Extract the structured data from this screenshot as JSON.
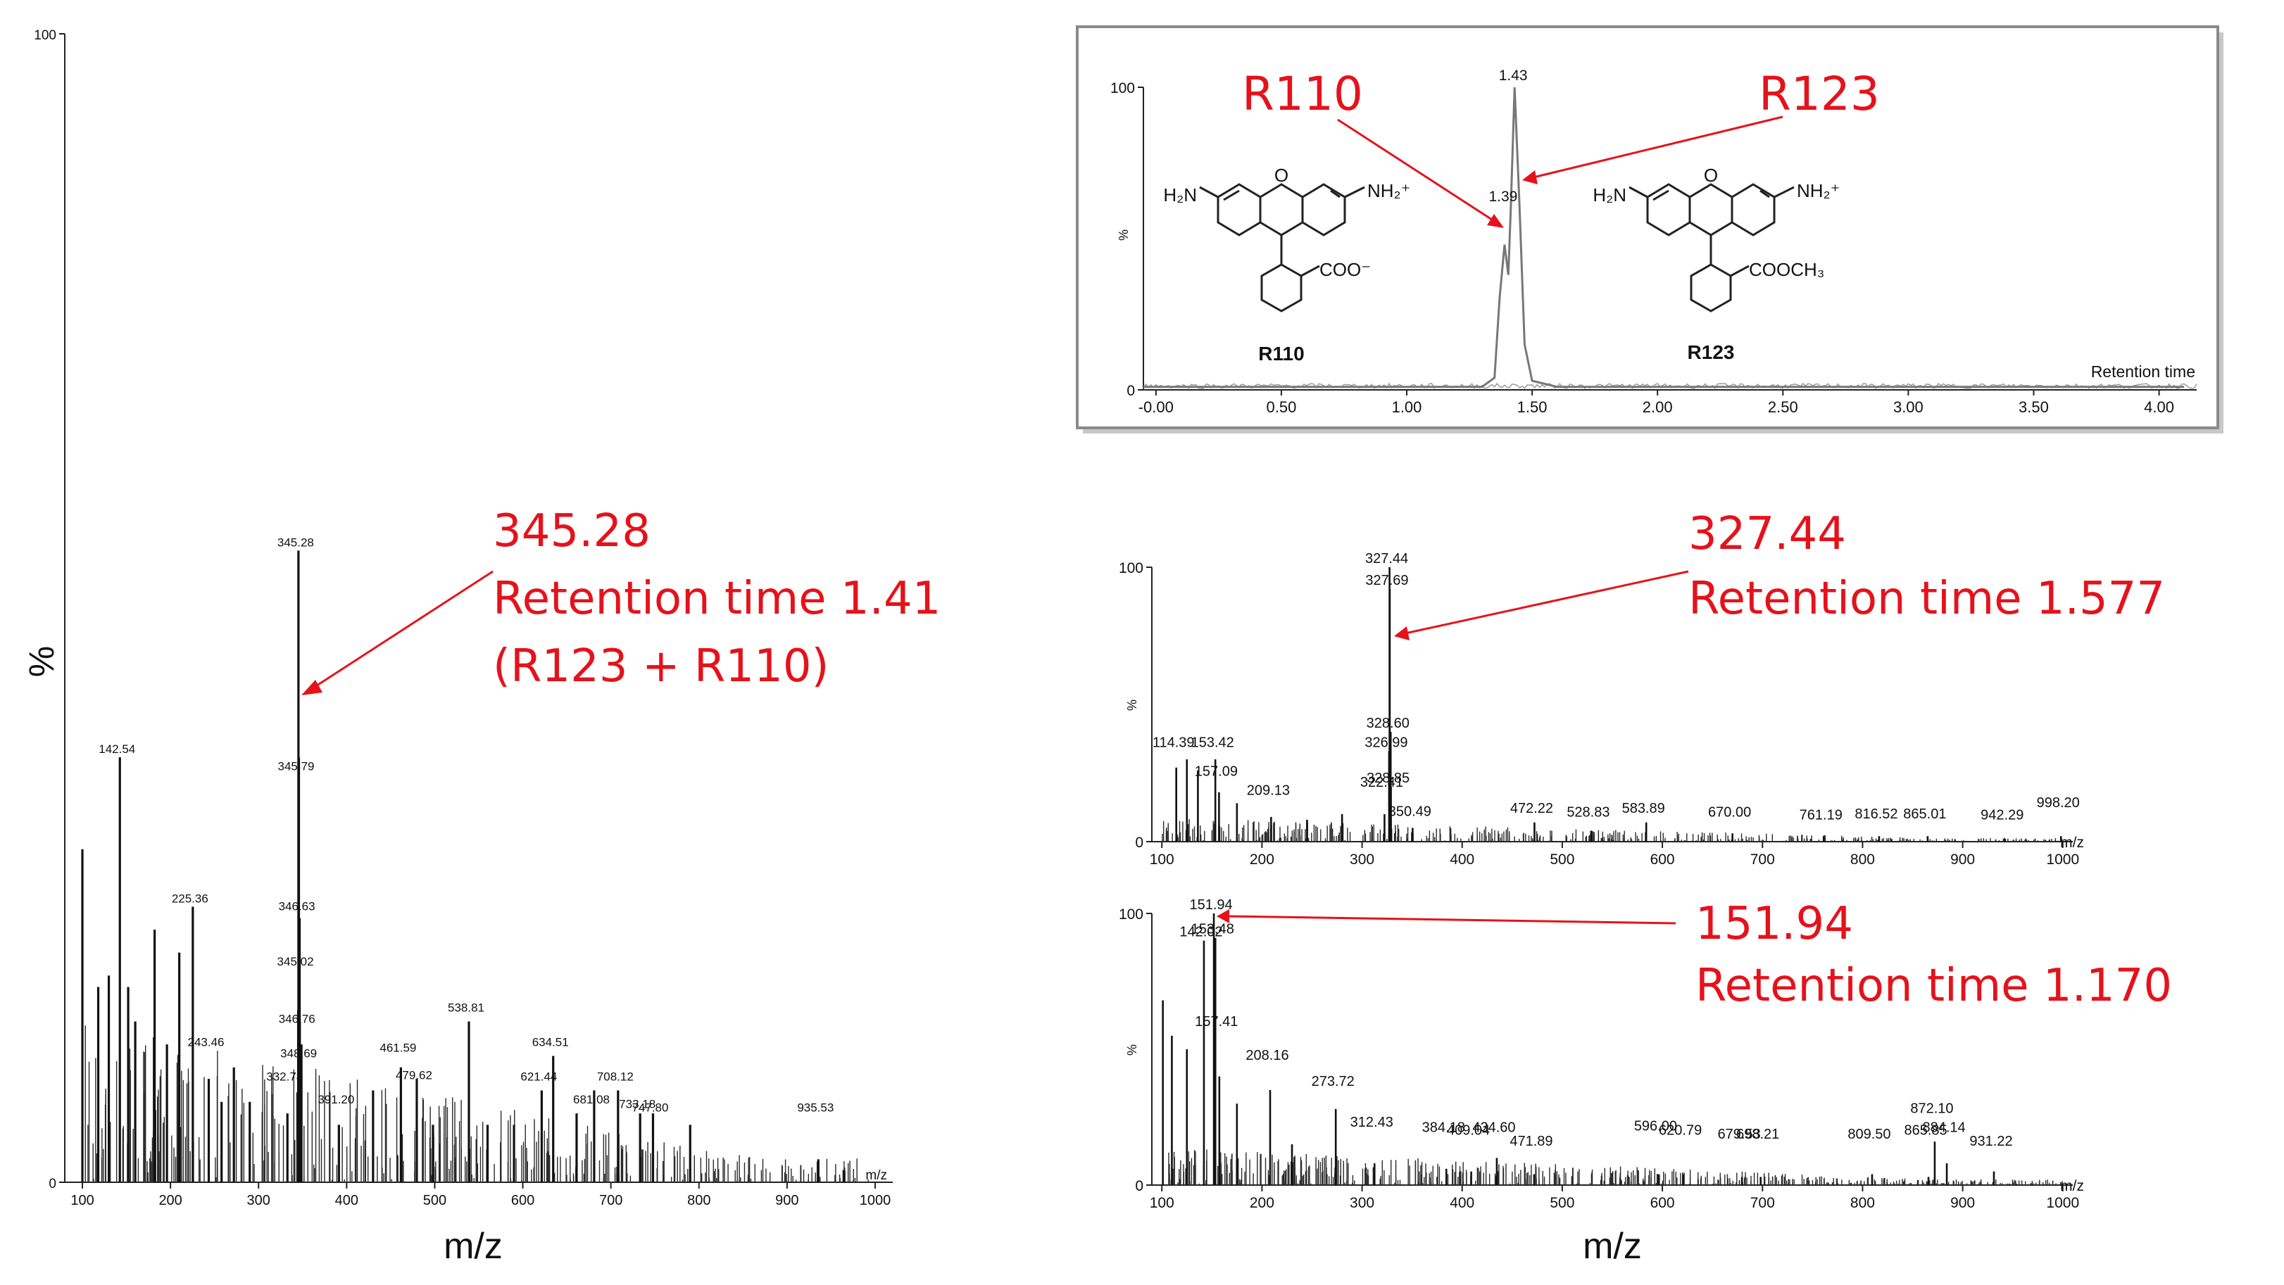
{
  "labels": {
    "percent_big": "%",
    "percent_small": "%",
    "mz_axis_tag": "m/z",
    "mz_xlabel_left": "m/z",
    "mz_xlabel_right": "m/z",
    "retention_axis_tag": "Retention time"
  },
  "annotations": {
    "left": [
      "345.28",
      "Retention time 1.41",
      "(R123 + R110)"
    ],
    "right_top": [
      "327.44",
      "Retention time 1.577"
    ],
    "right_bottom": [
      "151.94",
      "Retention time 1.170"
    ],
    "inset_r110": "R110",
    "inset_r123": "R123"
  },
  "chem": {
    "r110": {
      "amine_left": "H₂N",
      "amine_right": "NH₂⁺",
      "oxygen": "O",
      "substituent": "COO⁻",
      "name": "R110"
    },
    "r123": {
      "amine_left": "H₂N",
      "amine_right": "NH₂⁺",
      "oxygen": "O",
      "substituent": "COOCH₃",
      "name": "R123"
    }
  },
  "colors": {
    "annotation": "#e5121b",
    "trace": "#111111",
    "inset_trace": "#777777",
    "inset_border": "#888888"
  },
  "chart_data": [
    {
      "id": "main_spectrum",
      "type": "bar",
      "x": [
        100,
        118,
        130,
        142.54,
        152,
        160,
        182,
        196,
        210,
        225.36,
        243.46,
        258,
        272,
        290,
        332.78,
        345.02,
        345.28,
        345.79,
        346.63,
        346.76,
        348.69,
        391.2,
        430,
        461.59,
        479.62,
        498,
        538.81,
        560,
        590,
        621.44,
        634.51,
        661.08,
        681,
        708.12,
        733.18,
        747.8,
        790,
        935.53,
        965
      ],
      "values": [
        29,
        17,
        18,
        37,
        17,
        14,
        22,
        12,
        20,
        24,
        9,
        7,
        10,
        7,
        6,
        15,
        55,
        37,
        23,
        14,
        12,
        5,
        8,
        10,
        9,
        5,
        14,
        5,
        5,
        8,
        11,
        6,
        8,
        8,
        6,
        6,
        5,
        2,
        1
      ],
      "peak_labels": [
        {
          "x": 142.54,
          "y": 37,
          "label": "142.54"
        },
        {
          "x": 225.36,
          "y": 24,
          "label": "225.36"
        },
        {
          "x": 243.46,
          "y": 11.5,
          "label": "243.46"
        },
        {
          "x": 332.78,
          "y": 8.5,
          "label": "332.78"
        },
        {
          "x": 345.28,
          "y": 55,
          "label": "345.28"
        },
        {
          "x": 345.79,
          "y": 35.5,
          "label": "345.79"
        },
        {
          "x": 346.63,
          "y": 23.3,
          "label": "346.63"
        },
        {
          "x": 345.02,
          "y": 18.5,
          "label": "345.02"
        },
        {
          "x": 346.76,
          "y": 13.5,
          "label": "346.76"
        },
        {
          "x": 348.69,
          "y": 10.5,
          "label": "348.69"
        },
        {
          "x": 391.2,
          "y": 6.5,
          "label": "391.20"
        },
        {
          "x": 461.59,
          "y": 11,
          "label": "461.59"
        },
        {
          "x": 479.62,
          "y": 8.6,
          "label": "479.62"
        },
        {
          "x": 538.81,
          "y": 14.5,
          "label": "538.81"
        },
        {
          "x": 621.44,
          "y": 8.5,
          "label": "621.44"
        },
        {
          "x": 634.51,
          "y": 11.5,
          "label": "634.51"
        },
        {
          "x": 681.08,
          "y": 6.5,
          "label": "681.08"
        },
        {
          "x": 708.12,
          "y": 8.5,
          "label": "708.12"
        },
        {
          "x": 733.18,
          "y": 6.1,
          "label": "733.18"
        },
        {
          "x": 747.8,
          "y": 5.8,
          "label": "747.80"
        },
        {
          "x": 935.53,
          "y": 5.8,
          "label": "935.53"
        }
      ],
      "xlim": [
        80,
        1020
      ],
      "ylim": [
        0,
        100
      ],
      "xticks": [
        100,
        200,
        300,
        400,
        500,
        600,
        700,
        800,
        900,
        1000
      ],
      "yticks": [
        0,
        100
      ],
      "xlabel": "m/z",
      "ylabel": "%"
    },
    {
      "id": "inset_chromatogram",
      "type": "line",
      "x": [
        -0.05,
        1.3,
        1.35,
        1.37,
        1.39,
        1.405,
        1.415,
        1.43,
        1.45,
        1.47,
        1.5,
        1.6,
        4.1
      ],
      "y": [
        1,
        1,
        4,
        30,
        48,
        38,
        60,
        100,
        60,
        15,
        3,
        1,
        1
      ],
      "peak_labels": [
        {
          "x": 1.43,
          "y": 100,
          "label": "1.43"
        },
        {
          "x": 1.39,
          "y": 60,
          "label": "1.39"
        }
      ],
      "xlim": [
        -0.05,
        4.15
      ],
      "ylim": [
        0,
        100
      ],
      "xticks": [
        "-0.00",
        "0.50",
        "1.00",
        "1.50",
        "2.00",
        "2.50",
        "3.00",
        "3.50",
        "4.00"
      ],
      "yticks": [
        0,
        100
      ],
      "xlabel": "Retention time",
      "ylabel": "%"
    },
    {
      "id": "spectrum_rt_1577",
      "type": "bar",
      "x": [
        114.39,
        125,
        136,
        153.42,
        157.09,
        175,
        209.13,
        245,
        280,
        322.41,
        326.99,
        327.44,
        327.69,
        328.6,
        328.85,
        350.49,
        472.22,
        528.83,
        583.89,
        670.0,
        761.19,
        816.52,
        865.01,
        942.29,
        998.2
      ],
      "values": [
        27,
        30,
        26,
        30,
        18,
        14,
        9,
        8,
        10,
        10,
        33,
        100,
        92,
        40,
        20,
        5,
        7,
        4,
        7,
        3,
        2,
        2,
        2,
        1,
        2
      ],
      "peak_labels": [
        {
          "x": 327.44,
          "y": 100,
          "label": "327.44"
        },
        {
          "x": 327.69,
          "y": 92,
          "label": "327.69"
        },
        {
          "x": 328.6,
          "y": 40,
          "label": "328.60"
        },
        {
          "x": 326.99,
          "y": 33,
          "label": "326.99"
        },
        {
          "x": 328.85,
          "y": 20,
          "label": "328.85"
        },
        {
          "x": 114.39,
          "y": 33,
          "label": "114.39"
        },
        {
          "x": 153.42,
          "y": 33,
          "label": "153.42"
        },
        {
          "x": 157.09,
          "y": 22.5,
          "label": "157.09"
        },
        {
          "x": 209.13,
          "y": 15.5,
          "label": "209.13"
        },
        {
          "x": 322.41,
          "y": 18.5,
          "label": "322.41"
        },
        {
          "x": 350.49,
          "y": 7.8,
          "label": "350.49"
        },
        {
          "x": 472.22,
          "y": 9,
          "label": "472.22"
        },
        {
          "x": 528.83,
          "y": 7.6,
          "label": "528.83"
        },
        {
          "x": 583.89,
          "y": 9,
          "label": "583.89"
        },
        {
          "x": 670.0,
          "y": 7.6,
          "label": "670.00"
        },
        {
          "x": 761.19,
          "y": 6.6,
          "label": "761.19"
        },
        {
          "x": 816.52,
          "y": 6.9,
          "label": "816.52"
        },
        {
          "x": 865.01,
          "y": 6.9,
          "label": "865.01"
        },
        {
          "x": 942.29,
          "y": 6.6,
          "label": "942.29"
        },
        {
          "x": 998.2,
          "y": 11,
          "label": "998.20"
        }
      ],
      "xlim": [
        90,
        1010
      ],
      "ylim": [
        0,
        100
      ],
      "xticks": [
        100,
        200,
        300,
        400,
        500,
        600,
        700,
        800,
        900,
        1000
      ],
      "yticks": [
        0,
        100
      ],
      "xlabel": "m/z",
      "ylabel": "%"
    },
    {
      "id": "spectrum_rt_1170",
      "type": "bar",
      "x": [
        101,
        110,
        125,
        142.02,
        151.94,
        153.48,
        157.41,
        175,
        208.16,
        230,
        273.72,
        312.43,
        384.18,
        409.04,
        434.6,
        471.89,
        596.0,
        620.79,
        679.53,
        698.21,
        809.5,
        865.85,
        872.1,
        884.14,
        931.22
      ],
      "values": [
        68,
        55,
        50,
        90,
        100,
        91,
        40,
        30,
        35,
        15,
        28,
        8,
        6,
        5,
        10,
        4,
        4,
        4,
        3,
        3,
        4,
        3,
        16,
        8,
        5
      ],
      "peak_labels": [
        {
          "x": 151.94,
          "y": 100,
          "label": "151.94"
        },
        {
          "x": 142.02,
          "y": 90,
          "label": "142.02"
        },
        {
          "x": 153.48,
          "y": 91,
          "label": "153.48"
        },
        {
          "x": 157.41,
          "y": 57,
          "label": "157.41"
        },
        {
          "x": 208.16,
          "y": 44.5,
          "label": "208.16"
        },
        {
          "x": 273.72,
          "y": 35,
          "label": "273.72"
        },
        {
          "x": 312.43,
          "y": 20,
          "label": "312.43"
        },
        {
          "x": 384.18,
          "y": 18,
          "label": "384.18"
        },
        {
          "x": 409.04,
          "y": 17,
          "label": "409.04"
        },
        {
          "x": 434.6,
          "y": 18,
          "label": "434.60"
        },
        {
          "x": 471.89,
          "y": 13,
          "label": "471.89"
        },
        {
          "x": 596.0,
          "y": 18.5,
          "label": "596.00"
        },
        {
          "x": 620.79,
          "y": 17,
          "label": "620.79"
        },
        {
          "x": 679.53,
          "y": 15.5,
          "label": "679.53"
        },
        {
          "x": 698.21,
          "y": 15.5,
          "label": "698.21"
        },
        {
          "x": 809.5,
          "y": 15.5,
          "label": "809.50"
        },
        {
          "x": 865.85,
          "y": 17,
          "label": "865.85"
        },
        {
          "x": 872.1,
          "y": 25,
          "label": "872.10"
        },
        {
          "x": 884.14,
          "y": 18,
          "label": "884.14"
        },
        {
          "x": 931.22,
          "y": 13,
          "label": "931.22"
        }
      ],
      "xlim": [
        90,
        1010
      ],
      "ylim": [
        0,
        100
      ],
      "xticks": [
        100,
        200,
        300,
        400,
        500,
        600,
        700,
        800,
        900,
        1000
      ],
      "yticks": [
        0,
        100
      ],
      "xlabel": "m/z",
      "ylabel": "%"
    }
  ]
}
